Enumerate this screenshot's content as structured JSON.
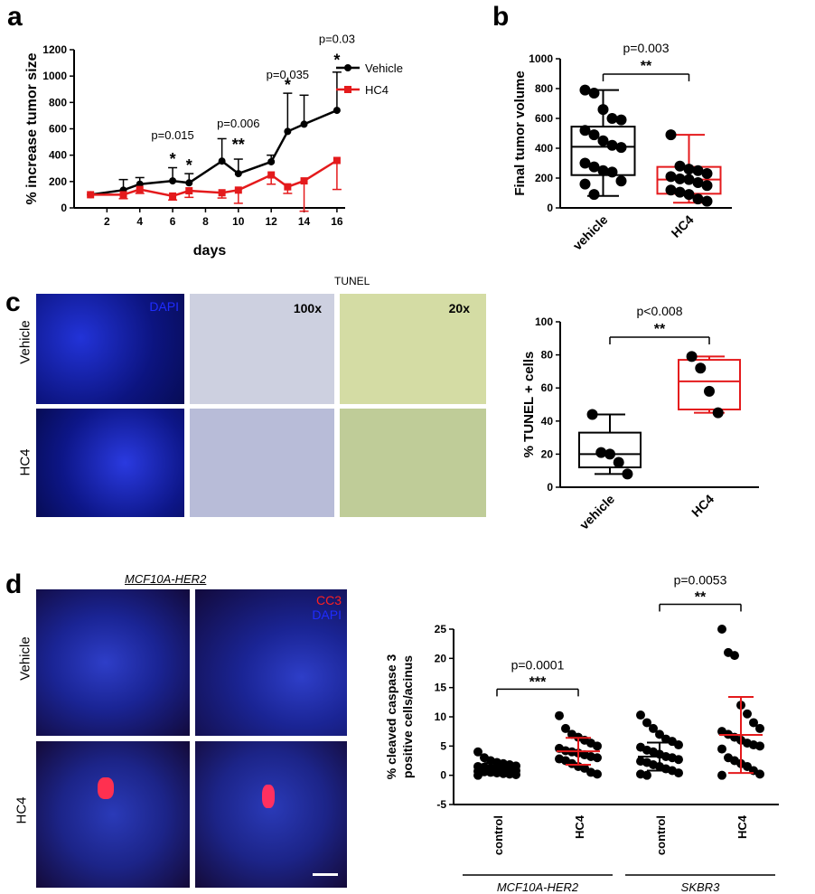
{
  "panels": {
    "a": "a",
    "b": "b",
    "c": "c",
    "d": "d"
  },
  "tunel_title": "TUNEL",
  "c_images": {
    "row_labels": [
      "Vehicle",
      "HC4"
    ],
    "dapi_label": "DAPI",
    "mag_100": "100x",
    "mag_20": "20x"
  },
  "d_images": {
    "title": "MCF10A-HER2",
    "row_labels": [
      "Vehicle",
      "HC4"
    ],
    "cc3_label": "CC3",
    "dapi_label": "DAPI"
  },
  "colors": {
    "vehicle": "#000000",
    "hc4": "#e41a1c",
    "dapi_blue": "#1020c8",
    "cc3_red": "#ff2020"
  },
  "chart_data": [
    {
      "id": "a",
      "type": "line",
      "xlabel": "days",
      "ylabel": "% increase tumor size",
      "ylim": [
        0,
        1200
      ],
      "yticks": [
        0,
        200,
        400,
        600,
        800,
        1000,
        1200
      ],
      "xticks": [
        2,
        4,
        6,
        8,
        10,
        12,
        14,
        16
      ],
      "legend_position": "top-right",
      "series": [
        {
          "name": "Vehicle",
          "x": [
            1,
            3,
            4,
            6,
            7,
            9,
            10,
            12,
            13,
            14,
            16
          ],
          "y": [
            100,
            135,
            180,
            205,
            190,
            355,
            260,
            350,
            580,
            635,
            740
          ],
          "err": [
            0,
            80,
            50,
            100,
            70,
            170,
            110,
            50,
            290,
            220,
            290
          ]
        },
        {
          "name": "HC4",
          "x": [
            1,
            3,
            4,
            6,
            7,
            9,
            10,
            12,
            13,
            14,
            16
          ],
          "y": [
            100,
            100,
            140,
            90,
            130,
            115,
            135,
            250,
            160,
            205,
            360
          ],
          "err": [
            0,
            30,
            30,
            30,
            50,
            40,
            100,
            70,
            50,
            230,
            220
          ]
        }
      ],
      "annotations": [
        {
          "x": 6,
          "text": "p=0.015",
          "value": 520
        },
        {
          "x": 6,
          "text": "*",
          "value": 330
        },
        {
          "x": 7,
          "text": "*",
          "value": 280
        },
        {
          "x": 10,
          "text": "p=0.006",
          "value": 610
        },
        {
          "x": 10,
          "text": "**",
          "value": 440
        },
        {
          "x": 13,
          "text": "p=0.035",
          "value": 980
        },
        {
          "x": 13,
          "text": "*",
          "value": 890
        },
        {
          "x": 16,
          "text": "p=0.03",
          "value": 1250
        },
        {
          "x": 16,
          "text": "*",
          "value": 1080
        }
      ]
    },
    {
      "id": "b",
      "type": "box",
      "ylabel": "Final tumor volume",
      "ylim": [
        0,
        1000
      ],
      "yticks": [
        0,
        200,
        400,
        600,
        800,
        1000
      ],
      "categories": [
        "vehicle",
        "HC4"
      ],
      "boxes": [
        {
          "min": 80,
          "q1": 220,
          "median": 410,
          "q3": 545,
          "max": 790
        },
        {
          "min": 35,
          "q1": 95,
          "median": 190,
          "q3": 275,
          "max": 490
        }
      ],
      "points": [
        [
          790,
          770,
          660,
          600,
          590,
          520,
          490,
          450,
          420,
          405,
          300,
          275,
          250,
          240,
          180,
          160,
          90
        ],
        [
          490,
          280,
          260,
          250,
          230,
          210,
          195,
          190,
          170,
          150,
          120,
          105,
          90,
          60,
          45
        ]
      ],
      "significance": {
        "p": "p=0.003",
        "stars": "**"
      }
    },
    {
      "id": "c",
      "type": "box",
      "ylabel": "% TUNEL + cells",
      "ylim": [
        0,
        100
      ],
      "yticks": [
        0,
        20,
        40,
        60,
        80,
        100
      ],
      "categories": [
        "vehicle",
        "HC4"
      ],
      "boxes": [
        {
          "min": 8,
          "q1": 12,
          "median": 20,
          "q3": 33,
          "max": 44
        },
        {
          "min": 45,
          "q1": 47,
          "median": 64,
          "q3": 77,
          "max": 79
        }
      ],
      "points": [
        [
          44,
          21,
          20,
          15,
          8
        ],
        [
          79,
          72,
          58,
          45
        ]
      ],
      "significance": {
        "p": "p<0.008",
        "stars": "**"
      }
    },
    {
      "id": "d",
      "type": "scatter",
      "ylabel_lines": [
        "% cleaved caspase 3",
        "positive cells/acinus"
      ],
      "ylim": [
        -5,
        25
      ],
      "yticks": [
        -5,
        0,
        5,
        10,
        15,
        20,
        25
      ],
      "categories": [
        "control",
        "HC4",
        "control",
        "HC4"
      ],
      "groups": [
        "MCF10A-HER2",
        "SKBR3"
      ],
      "means": [
        1.2,
        4.1,
        3.2,
        6.9
      ],
      "sd": [
        0.9,
        2.3,
        2.4,
        6.5
      ],
      "points": [
        [
          4,
          3,
          2.5,
          2.2,
          2,
          1.8,
          1.6,
          1.5,
          1.4,
          1.2,
          1.1,
          1,
          0.9,
          0.8,
          0.7,
          0.6,
          0.5,
          0.4,
          0.3,
          0.2,
          0.1,
          0
        ],
        [
          10.2,
          8,
          7,
          6.5,
          6,
          5.5,
          5,
          4.6,
          4.2,
          4,
          3.8,
          3.5,
          3.2,
          3,
          2.8,
          2.5,
          2,
          1.5,
          1.2,
          0.5,
          0.2
        ],
        [
          10.3,
          9,
          8,
          7,
          6.2,
          5.8,
          5.2,
          4.8,
          4.3,
          4,
          3.6,
          3.2,
          3,
          2.7,
          2.4,
          2.2,
          1.8,
          1.5,
          1.1,
          0.8,
          0.4,
          0.2,
          0
        ],
        [
          25,
          21,
          20.5,
          12,
          10.5,
          9,
          8,
          7.5,
          7,
          6.5,
          6,
          5.5,
          5.2,
          5,
          4.5,
          3,
          2.5,
          2,
          1.5,
          0.8,
          0.2,
          0
        ]
      ],
      "significance": [
        {
          "p": "p=0.0001",
          "stars": "***",
          "pair": [
            0,
            1
          ]
        },
        {
          "p": "p=0.0053",
          "stars": "**",
          "pair": [
            2,
            3
          ]
        }
      ]
    }
  ]
}
